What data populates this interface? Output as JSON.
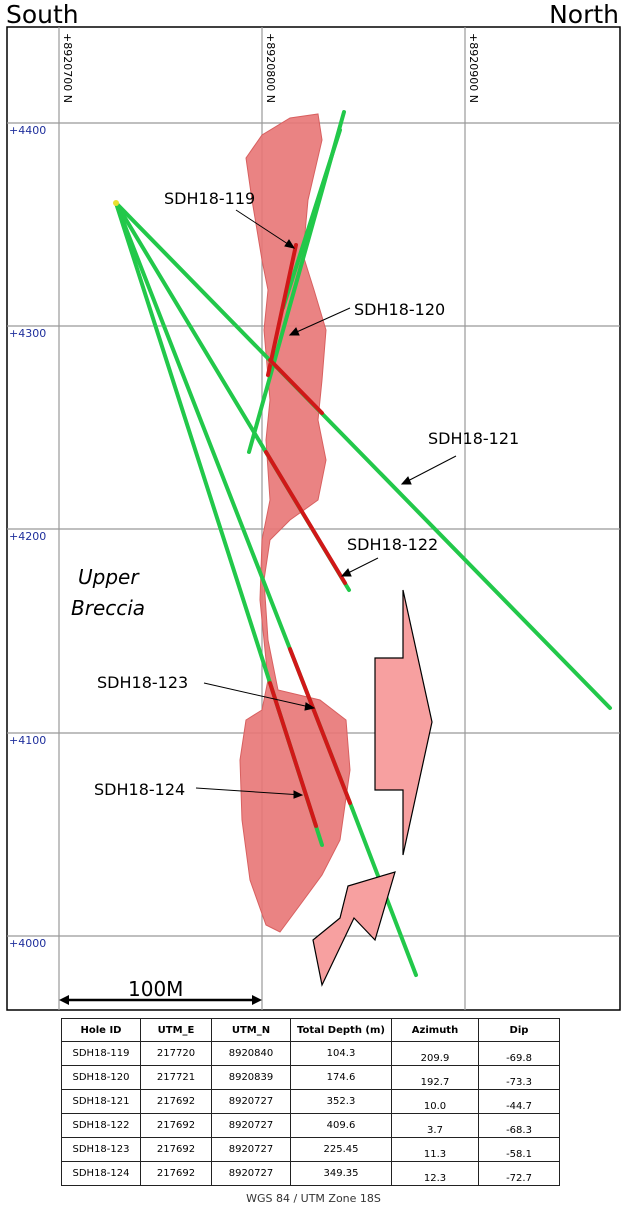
{
  "section": {
    "left_direction": "South",
    "right_direction": "North",
    "northing_labels": [
      "+8920700 N",
      "+8920800 N",
      "+8920900 N"
    ],
    "elevation_labels": [
      "+4400",
      "+4300",
      "+4200",
      "+4100",
      "+4000"
    ],
    "unit_label": "Upper Breccia",
    "unit_label_lines": [
      "Upper",
      "Breccia"
    ],
    "scale_bar_label": "100M",
    "hole_labels": [
      "SDH18-119",
      "SDH18-120",
      "SDH18-121",
      "SDH18-122",
      "SDH18-123",
      "SDH18-124"
    ],
    "colors": {
      "orebody": "#e87676",
      "trace": "#22c84a",
      "mineralized": "#d01818",
      "arrow": "#f7a0a0",
      "elevation_text": "#1f2f9c"
    }
  },
  "table": {
    "headers": [
      "Hole ID",
      "UTM_E",
      "UTM_N",
      "Total Depth (m)",
      "Azimuth",
      "Dip"
    ],
    "rows": [
      [
        "SDH18-119",
        "217720",
        "8920840",
        "104.3",
        "209.9",
        "-69.8"
      ],
      [
        "SDH18-120",
        "217721",
        "8920839",
        "174.6",
        "192.7",
        "-73.3"
      ],
      [
        "SDH18-121",
        "217692",
        "8920727",
        "352.3",
        "10.0",
        "-44.7"
      ],
      [
        "SDH18-122",
        "217692",
        "8920727",
        "409.6",
        "3.7",
        "-68.3"
      ],
      [
        "SDH18-123",
        "217692",
        "8920727",
        "225.45",
        "11.3",
        "-58.1"
      ],
      [
        "SDH18-124",
        "217692",
        "8920727",
        "349.35",
        "12.3",
        "-72.7"
      ]
    ],
    "datum": "WGS 84 / UTM Zone 18S"
  }
}
